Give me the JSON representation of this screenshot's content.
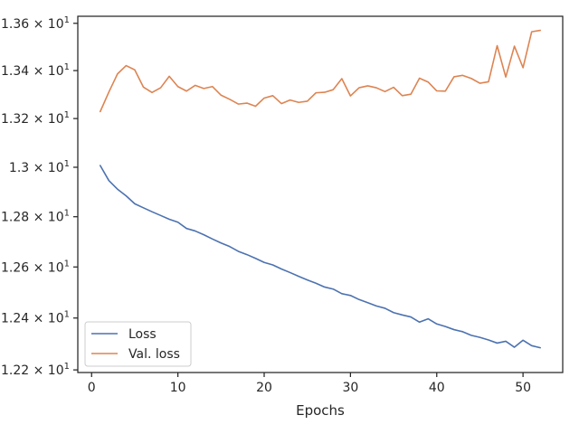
{
  "chart_data": {
    "type": "line",
    "title": "",
    "xlabel": "Epochs",
    "ylabel": "",
    "yscale": "log",
    "xlim": [
      -1.6,
      54.6
    ],
    "ylim": [
      12.19,
      13.63
    ],
    "grid": false,
    "legend_position": "lower-left",
    "x_ticks": [
      0,
      10,
      20,
      30,
      40,
      50
    ],
    "x_tick_labels": [
      "0",
      "10",
      "20",
      "30",
      "40",
      "50"
    ],
    "y_ticks": [
      12.2,
      12.4,
      12.6,
      12.8,
      13.0,
      13.2,
      13.4,
      13.6
    ],
    "y_tick_labels": [
      "1.22 × 10",
      "1.24 × 10",
      "1.26 × 10",
      "1.28 × 10",
      "1.3 × 10",
      "1.32 × 10",
      "1.34 × 10",
      "1.36 × 10"
    ],
    "y_tick_exponent": "1",
    "x": [
      1,
      2,
      3,
      4,
      5,
      6,
      7,
      8,
      9,
      10,
      11,
      12,
      13,
      14,
      15,
      16,
      17,
      18,
      19,
      20,
      21,
      22,
      23,
      24,
      25,
      26,
      27,
      28,
      29,
      30,
      31,
      32,
      33,
      34,
      35,
      36,
      37,
      38,
      39,
      40,
      41,
      42,
      43,
      44,
      45,
      46,
      47,
      48,
      49,
      50,
      51,
      52
    ],
    "series": [
      {
        "name": "Loss",
        "color": "#4c72b0",
        "values": [
          13.007,
          12.946,
          12.911,
          12.884,
          12.852,
          12.836,
          12.82,
          12.805,
          12.79,
          12.778,
          12.753,
          12.743,
          12.728,
          12.711,
          12.695,
          12.681,
          12.662,
          12.649,
          12.634,
          12.618,
          12.608,
          12.592,
          12.578,
          12.563,
          12.549,
          12.536,
          12.521,
          12.513,
          12.495,
          12.488,
          12.472,
          12.46,
          12.447,
          12.438,
          12.421,
          12.412,
          12.404,
          12.384,
          12.397,
          12.377,
          12.367,
          12.355,
          12.347,
          12.333,
          12.325,
          12.315,
          12.303,
          12.31,
          12.287,
          12.314,
          12.293,
          12.285
        ]
      },
      {
        "name": "Val. loss",
        "color": "#dd8452",
        "values": [
          13.229,
          13.31,
          13.386,
          13.421,
          13.403,
          13.331,
          13.308,
          13.328,
          13.376,
          13.333,
          13.314,
          13.338,
          13.325,
          13.333,
          13.297,
          13.28,
          13.26,
          13.264,
          13.251,
          13.285,
          13.295,
          13.262,
          13.277,
          13.267,
          13.272,
          13.307,
          13.309,
          13.32,
          13.366,
          13.294,
          13.328,
          13.336,
          13.328,
          13.312,
          13.33,
          13.295,
          13.301,
          13.368,
          13.352,
          13.315,
          13.314,
          13.374,
          13.38,
          13.367,
          13.347,
          13.353,
          13.505,
          13.373,
          13.503,
          13.412,
          13.564,
          13.57
        ]
      }
    ]
  }
}
